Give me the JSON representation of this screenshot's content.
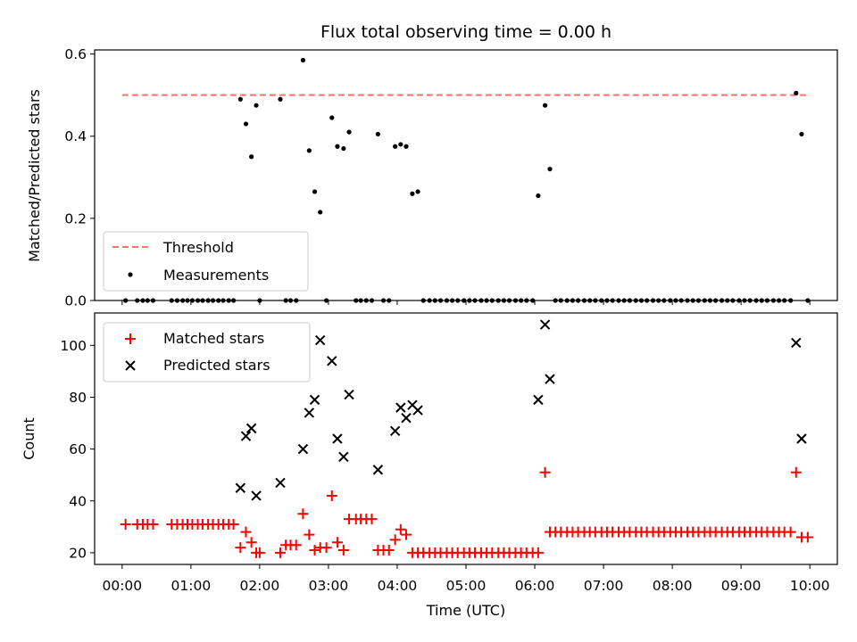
{
  "chart_data": [
    {
      "type": "scatter",
      "title": "Flux total observing time = 0.00 h",
      "xlabel": "",
      "ylabel": "Matched/Predicted stars",
      "xlim": [
        -0.4,
        10.4
      ],
      "ylim": [
        0,
        0.61
      ],
      "yticks": [
        0.0,
        0.2,
        0.4,
        0.6
      ],
      "ytick_labels": [
        "0.0",
        "0.2",
        "0.4",
        "0.6"
      ],
      "grid": false,
      "legend": {
        "position": "lower-left",
        "entries": [
          "Threshold",
          "Measurements"
        ]
      },
      "threshold": {
        "name": "Threshold",
        "y": 0.5,
        "x_range": [
          0.0,
          10.0
        ],
        "color": "#ff7070",
        "style": "dashed"
      },
      "series": [
        {
          "name": "Measurements",
          "color": "#000000",
          "marker": "dot",
          "x": [
            0.05,
            0.22,
            0.3,
            0.37,
            0.45,
            0.72,
            0.8,
            0.88,
            0.95,
            1.02,
            1.1,
            1.17,
            1.25,
            1.32,
            1.4,
            1.47,
            1.55,
            1.62,
            1.72,
            1.8,
            1.88,
            1.95,
            2.0,
            2.3,
            2.38,
            2.45,
            2.53,
            2.63,
            2.72,
            2.8,
            2.88,
            2.97,
            3.05,
            3.13,
            3.22,
            3.3,
            3.4,
            3.47,
            3.55,
            3.63,
            3.72,
            3.8,
            3.88,
            3.97,
            4.05,
            4.13,
            4.22,
            4.3,
            4.38,
            4.47,
            4.55,
            4.63,
            4.72,
            4.8,
            4.88,
            4.97,
            5.05,
            5.13,
            5.22,
            5.3,
            5.38,
            5.47,
            5.55,
            5.63,
            5.72,
            5.8,
            5.88,
            5.97,
            6.05,
            6.15,
            6.22,
            6.3,
            6.38,
            6.47,
            6.55,
            6.63,
            6.72,
            6.8,
            6.88,
            6.97,
            7.05,
            7.13,
            7.22,
            7.3,
            7.38,
            7.47,
            7.55,
            7.63,
            7.72,
            7.8,
            7.88,
            7.97,
            8.05,
            8.13,
            8.22,
            8.3,
            8.38,
            8.47,
            8.55,
            8.63,
            8.72,
            8.8,
            8.88,
            8.97,
            9.05,
            9.13,
            9.22,
            9.3,
            9.38,
            9.47,
            9.55,
            9.63,
            9.72,
            9.8,
            9.88,
            9.97
          ],
          "y": [
            0,
            0,
            0,
            0,
            0,
            0,
            0,
            0,
            0,
            0,
            0,
            0,
            0,
            0,
            0,
            0,
            0,
            0,
            0.49,
            0.43,
            0.35,
            0.475,
            0,
            0.49,
            0,
            0,
            0,
            0.585,
            0.365,
            0.265,
            0.215,
            0,
            0.445,
            0.375,
            0.37,
            0.41,
            0,
            0,
            0,
            0,
            0.405,
            0,
            0,
            0.375,
            0.38,
            0.375,
            0.26,
            0.265,
            0,
            0,
            0,
            0,
            0,
            0,
            0,
            0,
            0,
            0,
            0,
            0,
            0,
            0,
            0,
            0,
            0,
            0,
            0,
            0,
            0.255,
            0.475,
            0.32,
            0,
            0,
            0,
            0,
            0,
            0,
            0,
            0,
            0,
            0,
            0,
            0,
            0,
            0,
            0,
            0,
            0,
            0,
            0,
            0,
            0,
            0,
            0,
            0,
            0,
            0,
            0,
            0,
            0,
            0,
            0,
            0,
            0,
            0,
            0,
            0,
            0,
            0,
            0,
            0,
            0,
            0,
            0.505,
            0.405,
            0
          ]
        }
      ]
    },
    {
      "type": "scatter",
      "title": "",
      "xlabel": "Time (UTC)",
      "ylabel": "Count",
      "xlim": [
        -0.4,
        10.4
      ],
      "ylim": [
        15.5,
        112.5
      ],
      "xticks": [
        0,
        1,
        2,
        3,
        4,
        5,
        6,
        7,
        8,
        9,
        10
      ],
      "xtick_labels": [
        "00:00",
        "01:00",
        "02:00",
        "03:00",
        "04:00",
        "05:00",
        "06:00",
        "07:00",
        "08:00",
        "09:00",
        "10:00"
      ],
      "yticks": [
        20,
        40,
        60,
        80,
        100
      ],
      "ytick_labels": [
        "20",
        "40",
        "60",
        "80",
        "100"
      ],
      "grid": false,
      "legend": {
        "position": "upper-left",
        "entries": [
          "Matched stars",
          "Predicted stars"
        ]
      },
      "series": [
        {
          "name": "Matched stars",
          "color": "#ff0000",
          "marker": "plus",
          "x": [
            0.05,
            0.22,
            0.3,
            0.37,
            0.45,
            0.72,
            0.8,
            0.88,
            0.95,
            1.02,
            1.1,
            1.17,
            1.25,
            1.32,
            1.4,
            1.47,
            1.55,
            1.62,
            1.72,
            1.8,
            1.88,
            1.95,
            2.0,
            2.3,
            2.38,
            2.45,
            2.53,
            2.63,
            2.72,
            2.8,
            2.88,
            2.97,
            3.05,
            3.13,
            3.22,
            3.3,
            3.4,
            3.47,
            3.55,
            3.63,
            3.72,
            3.8,
            3.88,
            3.97,
            4.05,
            4.13,
            4.22,
            4.3,
            4.38,
            4.47,
            4.55,
            4.63,
            4.72,
            4.8,
            4.88,
            4.97,
            5.05,
            5.13,
            5.22,
            5.3,
            5.38,
            5.47,
            5.55,
            5.63,
            5.72,
            5.8,
            5.88,
            5.97,
            6.05,
            6.15,
            6.22,
            6.3,
            6.38,
            6.47,
            6.55,
            6.63,
            6.72,
            6.8,
            6.88,
            6.97,
            7.05,
            7.13,
            7.22,
            7.3,
            7.38,
            7.47,
            7.55,
            7.63,
            7.72,
            7.8,
            7.88,
            7.97,
            8.05,
            8.13,
            8.22,
            8.3,
            8.38,
            8.47,
            8.55,
            8.63,
            8.72,
            8.8,
            8.88,
            8.97,
            9.05,
            9.13,
            9.22,
            9.3,
            9.38,
            9.47,
            9.55,
            9.63,
            9.72,
            9.8,
            9.88,
            9.97
          ],
          "y": [
            31,
            31,
            31,
            31,
            31,
            31,
            31,
            31,
            31,
            31,
            31,
            31,
            31,
            31,
            31,
            31,
            31,
            31,
            22,
            28,
            24,
            20,
            20,
            20,
            23,
            23,
            23,
            35,
            27,
            21,
            22,
            22,
            42,
            24,
            21,
            33,
            33,
            33,
            33,
            33,
            21,
            21,
            21,
            25,
            29,
            27,
            20,
            20,
            20,
            20,
            20,
            20,
            20,
            20,
            20,
            20,
            20,
            20,
            20,
            20,
            20,
            20,
            20,
            20,
            20,
            20,
            20,
            20,
            20,
            51,
            28,
            28,
            28,
            28,
            28,
            28,
            28,
            28,
            28,
            28,
            28,
            28,
            28,
            28,
            28,
            28,
            28,
            28,
            28,
            28,
            28,
            28,
            28,
            28,
            28,
            28,
            28,
            28,
            28,
            28,
            28,
            28,
            28,
            28,
            28,
            28,
            28,
            28,
            28,
            28,
            28,
            28,
            28,
            51,
            26,
            26
          ]
        },
        {
          "name": "Predicted stars",
          "color": "#000000",
          "marker": "x",
          "x": [
            1.72,
            1.8,
            1.88,
            1.95,
            2.3,
            2.63,
            2.72,
            2.8,
            2.88,
            3.05,
            3.13,
            3.22,
            3.3,
            3.72,
            3.97,
            4.05,
            4.13,
            4.22,
            4.3,
            6.05,
            6.15,
            6.22,
            9.8,
            9.88
          ],
          "y": [
            45,
            65,
            68,
            42,
            47,
            60,
            74,
            79,
            102,
            94,
            64,
            57,
            81,
            52,
            67,
            76,
            72,
            77,
            75,
            79,
            108,
            87,
            101,
            64
          ]
        }
      ]
    }
  ]
}
